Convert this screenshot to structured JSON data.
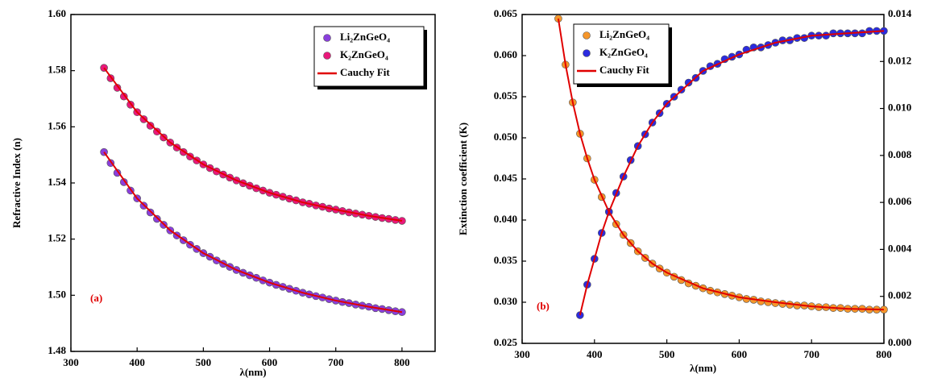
{
  "chart_data": [
    {
      "type": "scatter",
      "panel_label": "(a)",
      "x_label": "λ(nm)",
      "y_label": "Refractive Index (n)",
      "xlim": [
        300,
        850
      ],
      "xticks": [
        300,
        400,
        500,
        600,
        700,
        800
      ],
      "ylim": [
        1.48,
        1.6
      ],
      "yticks": [
        1.48,
        {
          "value": 1.5,
          "label": "1.50"
        },
        1.52,
        1.54,
        1.56,
        1.58,
        {
          "value": 1.6,
          "label": "1.60"
        }
      ],
      "series": [
        {
          "name": "Li₂ZnGeO₄",
          "color": "#8a3fdc",
          "x": [
            350,
            360,
            370,
            380,
            390,
            400,
            410,
            420,
            430,
            440,
            450,
            460,
            470,
            480,
            490,
            500,
            510,
            520,
            530,
            540,
            550,
            560,
            570,
            580,
            590,
            600,
            610,
            620,
            630,
            640,
            650,
            660,
            670,
            680,
            690,
            700,
            710,
            720,
            730,
            740,
            750,
            760,
            770,
            780,
            790,
            800
          ],
          "values": [
            1.551,
            1.5471,
            1.5436,
            1.5403,
            1.5373,
            1.5345,
            1.5319,
            1.5295,
            1.5272,
            1.5251,
            1.5231,
            1.5213,
            1.5196,
            1.518,
            1.5165,
            1.515,
            1.5137,
            1.5124,
            1.5112,
            1.5101,
            1.509,
            1.508,
            1.5071,
            1.5062,
            1.5053,
            1.5045,
            1.5037,
            1.503,
            1.5023,
            1.5016,
            1.5009,
            1.5003,
            1.4997,
            1.4992,
            1.4986,
            1.4981,
            1.4976,
            1.4972,
            1.4967,
            1.4963,
            1.4959,
            1.4954,
            1.4951,
            1.4947,
            1.4943,
            1.494
          ]
        },
        {
          "name": "K₂ZnGeO₄",
          "color": "#e8197a",
          "x": [
            350,
            360,
            370,
            380,
            390,
            400,
            410,
            420,
            430,
            440,
            450,
            460,
            470,
            480,
            490,
            500,
            510,
            520,
            530,
            540,
            550,
            560,
            570,
            580,
            590,
            600,
            610,
            620,
            630,
            640,
            650,
            660,
            670,
            680,
            690,
            700,
            710,
            720,
            730,
            740,
            750,
            760,
            770,
            780,
            790,
            800
          ],
          "values": [
            1.581,
            1.5773,
            1.5739,
            1.5708,
            1.5679,
            1.5652,
            1.5627,
            1.5604,
            1.5583,
            1.5562,
            1.5544,
            1.5526,
            1.551,
            1.5494,
            1.548,
            1.5466,
            1.5453,
            1.5441,
            1.543,
            1.5419,
            1.5409,
            1.5399,
            1.539,
            1.5381,
            1.5373,
            1.5365,
            1.5358,
            1.5351,
            1.5344,
            1.5338,
            1.5331,
            1.5326,
            1.532,
            1.5315,
            1.5309,
            1.5305,
            1.53,
            1.5295,
            1.5291,
            1.5287,
            1.5283,
            1.5279,
            1.5275,
            1.5272,
            1.5268,
            1.5265
          ]
        }
      ],
      "fit": {
        "name": "Cauchy Fit",
        "color": "#e00000",
        "lines": [
          {
            "x": [
              350,
              400,
              450,
              500,
              550,
              600,
              650,
              700,
              750,
              800
            ],
            "values": [
              1.551,
              1.5345,
              1.5231,
              1.515,
              1.509,
              1.5045,
              1.5009,
              1.4981,
              1.4959,
              1.494
            ]
          },
          {
            "x": [
              350,
              400,
              450,
              500,
              550,
              600,
              650,
              700,
              750,
              800
            ],
            "values": [
              1.581,
              1.5652,
              1.5544,
              1.5466,
              1.5409,
              1.5365,
              1.5331,
              1.5305,
              1.5283,
              1.5265
            ]
          }
        ]
      }
    },
    {
      "type": "scatter",
      "panel_label": "(b)",
      "x_label": "λ(nm)",
      "y_label": "Extinction coefficient (K)",
      "xlim": [
        300,
        800
      ],
      "xticks": [
        300,
        400,
        500,
        600,
        700,
        800
      ],
      "ylim": [
        0.025,
        0.065
      ],
      "yticks": [
        0.025,
        {
          "value": 0.03,
          "label": "0.030"
        },
        0.035,
        {
          "value": 0.04,
          "label": "0.040"
        },
        0.045,
        {
          "value": 0.05,
          "label": "0.050"
        },
        0.055,
        {
          "value": 0.06,
          "label": "0.060"
        },
        0.065
      ],
      "y2lim": [
        0,
        0.014
      ],
      "y2ticks": [
        {
          "value": 0,
          "label": "0.000"
        },
        0.002,
        0.004,
        0.006,
        0.008,
        {
          "value": 0.01,
          "label": "0.010"
        },
        0.012,
        0.014
      ],
      "series": [
        {
          "name": "Li₂ZnGeO₄",
          "color": "#f5962a",
          "x": [
            350,
            360,
            370,
            380,
            390,
            400,
            410,
            420,
            430,
            440,
            450,
            460,
            470,
            480,
            490,
            500,
            510,
            520,
            530,
            540,
            550,
            560,
            570,
            580,
            590,
            600,
            610,
            620,
            630,
            640,
            650,
            660,
            670,
            680,
            690,
            700,
            710,
            720,
            730,
            740,
            750,
            760,
            770,
            780,
            790,
            800
          ],
          "values": [
            0.0645,
            0.0589,
            0.0543,
            0.0505,
            0.0475,
            0.0449,
            0.0428,
            0.041,
            0.0395,
            0.0382,
            0.0372,
            0.0362,
            0.0354,
            0.0347,
            0.0341,
            0.0336,
            0.0331,
            0.0327,
            0.0323,
            0.032,
            0.0317,
            0.0314,
            0.0312,
            0.031,
            0.0308,
            0.0306,
            0.0304,
            0.0303,
            0.0301,
            0.03,
            0.0299,
            0.0298,
            0.0297,
            0.0296,
            0.0296,
            0.0295,
            0.0294,
            0.0294,
            0.0293,
            0.0293,
            0.0292,
            0.0292,
            0.0292,
            0.0291,
            0.0291,
            0.0291
          ]
        },
        {
          "name": "K₂ZnGeO₄",
          "color": "#2b2bdf",
          "axis": "y2",
          "x": [
            380,
            390,
            400,
            410,
            420,
            430,
            440,
            450,
            460,
            470,
            480,
            490,
            500,
            510,
            520,
            530,
            540,
            550,
            560,
            570,
            580,
            590,
            600,
            610,
            620,
            630,
            640,
            650,
            660,
            670,
            680,
            690,
            700,
            710,
            720,
            730,
            740,
            750,
            760,
            770,
            780,
            790,
            800
          ],
          "values": [
            0.0012,
            0.0025,
            0.0036,
            0.0047,
            0.0056,
            0.0064,
            0.0071,
            0.0078,
            0.0084,
            0.0089,
            0.0094,
            0.0098,
            0.0102,
            0.0105,
            0.0108,
            0.0111,
            0.0113,
            0.0116,
            0.0118,
            0.0119,
            0.0121,
            0.0122,
            0.0123,
            0.0125,
            0.0126,
            0.0126,
            0.0127,
            0.0128,
            0.0129,
            0.0129,
            0.013,
            0.013,
            0.0131,
            0.0131,
            0.0131,
            0.0132,
            0.0132,
            0.0132,
            0.0132,
            0.0132,
            0.0133,
            0.0133,
            0.0133
          ]
        }
      ],
      "fit": {
        "name": "Cauchy Fit",
        "color": "#e00000",
        "lines": [
          {
            "x": [
              350,
              360,
              370,
              380,
              390,
              400,
              420,
              440,
              460,
              480,
              500,
              550,
              600,
              650,
              700,
              750,
              800
            ],
            "values": [
              0.0645,
              0.0589,
              0.0543,
              0.0505,
              0.0475,
              0.0449,
              0.041,
              0.0382,
              0.0362,
              0.0347,
              0.0336,
              0.0317,
              0.0306,
              0.03,
              0.0295,
              0.0292,
              0.0291
            ]
          },
          {
            "x": [
              380,
              390,
              400,
              410,
              420,
              440,
              460,
              480,
              500,
              550,
              600,
              650,
              700,
              750,
              800
            ],
            "values": [
              0.0012,
              0.0025,
              0.0036,
              0.0047,
              0.0056,
              0.0071,
              0.0084,
              0.0094,
              0.0102,
              0.0116,
              0.0123,
              0.0128,
              0.0131,
              0.0132,
              0.0133
            ],
            "axis": "y2"
          }
        ]
      }
    }
  ]
}
